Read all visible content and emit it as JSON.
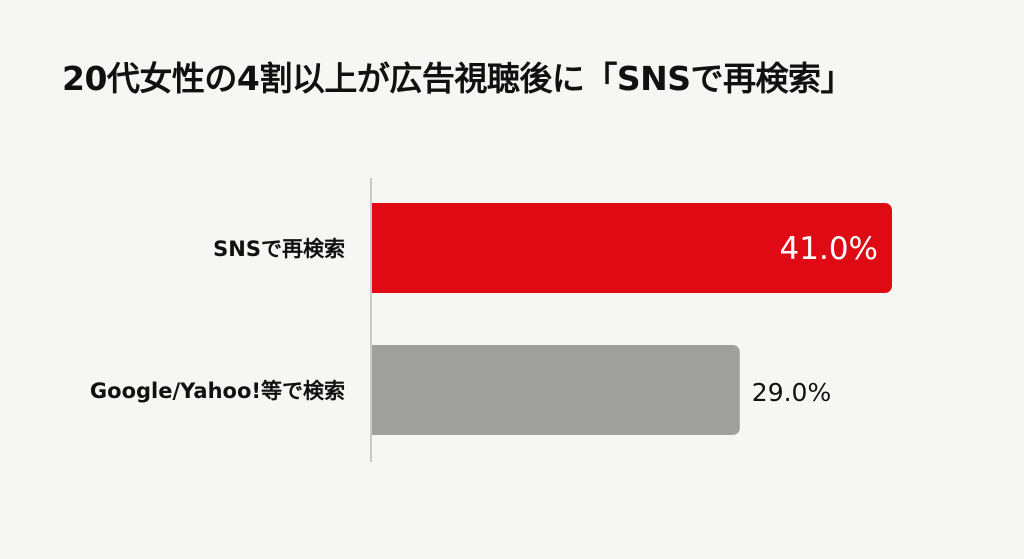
{
  "chart_data": {
    "type": "bar",
    "orientation": "horizontal",
    "title": "20代女性の4割以上が広告視聴後に「SNSで再検索」",
    "categories": [
      "SNSで再検索",
      "Google/Yahoo!等で検索"
    ],
    "values": [
      41.0,
      29.0
    ],
    "data_labels": [
      "41.0%",
      "29.0%"
    ],
    "colors": [
      "#e00a14",
      "#9fa09d"
    ],
    "xlabel": "",
    "ylabel": "",
    "grid": false,
    "legend": "none"
  }
}
